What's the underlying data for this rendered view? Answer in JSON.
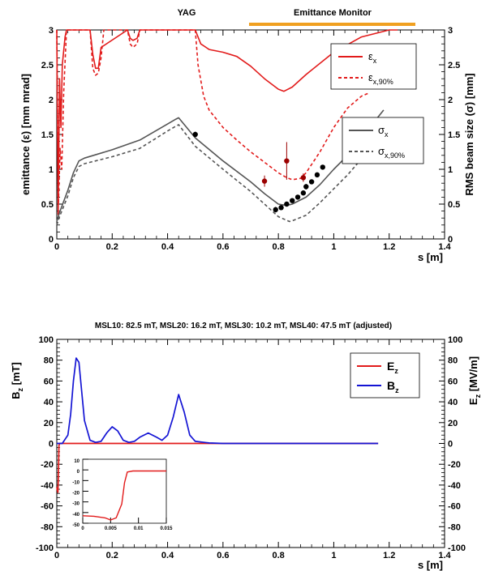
{
  "top_chart": {
    "region_labels": {
      "yag": "YAG",
      "emittance_monitor": "Emittance Monitor"
    },
    "colors": {
      "orange_bar": "#f0a020",
      "emit": "#e21b1b",
      "sigma": "#555555",
      "meas_red": "#9b0000",
      "meas_black": "#000000"
    },
    "legend_emit": {
      "line1": "ε",
      "sub1": "x",
      "line2": "ε",
      "sub2": "x,90%"
    },
    "legend_sigma": {
      "line1": "σ",
      "sub1": "x",
      "line2": "σ",
      "sub2": "x,90%"
    }
  },
  "bottom_chart": {
    "colors": {
      "ez": "#e21b1b",
      "bz": "#1414d4"
    },
    "legend": {
      "line1": "E",
      "sub1": "z",
      "line2": "B",
      "sub2": "z"
    }
  },
  "chart_data": [
    {
      "type": "line",
      "xlabel": "s [m]",
      "ylabel": "emittance (ε) [mm mrad]",
      "y2label": "RMS beam size (σ) [mm]",
      "xlim": [
        0,
        1.4
      ],
      "ylim": [
        0,
        3
      ],
      "y2lim": [
        0,
        3
      ],
      "x_ticks": [
        "0",
        "0.2",
        "0.4",
        "0.6",
        "0.8",
        "1",
        "1.2",
        "1.4"
      ],
      "y_ticks": [
        "0",
        "0.5",
        "1",
        "1.5",
        "2",
        "2.5",
        "3"
      ],
      "y2_ticks": [
        "0",
        "0.5",
        "1",
        "1.5",
        "2",
        "2.5",
        "3"
      ],
      "series": [
        {
          "name": "εx",
          "style": "solid",
          "x": [
            0.0,
            0.005,
            0.01,
            0.015,
            0.02,
            0.03,
            0.035,
            0.12,
            0.13,
            0.14,
            0.15,
            0.16,
            0.255,
            0.265,
            0.275,
            0.29,
            0.3,
            0.5,
            0.52,
            0.55,
            0.6,
            0.65,
            0.7,
            0.75,
            0.8,
            0.82,
            0.85,
            0.9,
            1.0,
            1.1,
            1.2,
            1.23
          ],
          "y": [
            3.0,
            0.35,
            2.3,
            1.6,
            2.5,
            2.9,
            3.0,
            3.0,
            2.65,
            2.45,
            2.45,
            2.75,
            3.0,
            2.88,
            2.85,
            2.88,
            3.0,
            3.0,
            2.8,
            2.72,
            2.68,
            2.62,
            2.48,
            2.3,
            2.15,
            2.12,
            2.18,
            2.36,
            2.68,
            2.9,
            3.0,
            3.0
          ]
        },
        {
          "name": "εx,90%",
          "style": "dashed",
          "x": [
            0.0,
            0.006,
            0.012,
            0.018,
            0.025,
            0.035,
            0.12,
            0.13,
            0.14,
            0.15,
            0.16,
            0.17,
            0.255,
            0.265,
            0.275,
            0.29,
            0.3,
            0.5,
            0.51,
            0.53,
            0.55,
            0.6,
            0.65,
            0.7,
            0.75,
            0.8,
            0.83,
            0.85,
            0.88,
            0.9,
            0.95,
            1.0,
            1.05,
            1.1,
            1.13
          ],
          "y": [
            3.0,
            0.5,
            1.3,
            1.0,
            2.1,
            3.0,
            3.0,
            2.45,
            2.35,
            2.38,
            2.6,
            3.0,
            3.0,
            2.8,
            2.75,
            2.8,
            3.0,
            3.0,
            2.5,
            2.05,
            1.85,
            1.6,
            1.42,
            1.25,
            1.1,
            0.95,
            0.88,
            0.85,
            0.87,
            0.95,
            1.25,
            1.6,
            1.88,
            2.05,
            2.1
          ]
        },
        {
          "name": "σx",
          "style": "solid",
          "x": [
            0.0,
            0.01,
            0.04,
            0.06,
            0.08,
            0.1,
            0.2,
            0.3,
            0.4,
            0.43,
            0.44,
            0.5,
            0.6,
            0.7,
            0.75,
            0.8,
            0.83,
            0.85,
            0.9,
            0.95,
            1.0,
            1.05,
            1.1,
            1.15,
            1.18
          ],
          "y": [
            0.25,
            0.38,
            0.7,
            0.95,
            1.12,
            1.16,
            1.28,
            1.42,
            1.65,
            1.72,
            1.74,
            1.45,
            1.12,
            0.82,
            0.65,
            0.5,
            0.48,
            0.5,
            0.6,
            0.78,
            1.0,
            1.2,
            1.45,
            1.7,
            1.85
          ]
        },
        {
          "name": "σx,90%",
          "style": "dashed",
          "x": [
            0.0,
            0.01,
            0.04,
            0.06,
            0.08,
            0.1,
            0.2,
            0.3,
            0.4,
            0.43,
            0.44,
            0.5,
            0.6,
            0.7,
            0.75,
            0.8,
            0.84,
            0.85,
            0.9,
            0.95,
            1.0,
            1.05,
            1.1,
            1.15,
            1.18
          ],
          "y": [
            0.2,
            0.32,
            0.62,
            0.88,
            1.04,
            1.08,
            1.18,
            1.3,
            1.55,
            1.62,
            1.64,
            1.33,
            1.0,
            0.68,
            0.5,
            0.32,
            0.25,
            0.26,
            0.34,
            0.52,
            0.72,
            0.92,
            1.15,
            1.38,
            1.52
          ]
        }
      ],
      "measurements_emittance": {
        "x": [
          0.75,
          0.83,
          0.89
        ],
        "y": [
          0.83,
          1.12,
          0.88
        ],
        "err": [
          0.08,
          0.27,
          0.06
        ]
      },
      "measurements_sigma": {
        "x": [
          0.5,
          0.79,
          0.81,
          0.83,
          0.85,
          0.87,
          0.89,
          0.9,
          0.92,
          0.94,
          0.96
        ],
        "y": [
          1.5,
          0.42,
          0.45,
          0.5,
          0.55,
          0.6,
          0.66,
          0.75,
          0.82,
          0.92,
          1.03
        ],
        "err": [
          0.04,
          0.04,
          0.03,
          0.03,
          0.03,
          0.03,
          0.03,
          0.04,
          0.03,
          0.03,
          0.03
        ]
      }
    },
    {
      "type": "line",
      "title": "MSL10: 82.5 mT, MSL20: 16.2 mT, MSL30: 10.2 mT, MSL40: 47.5 mT (adjusted)",
      "xlabel": "s [m]",
      "ylabel": "Bz [mT]",
      "y2label": "Ez [MV/m]",
      "xlim": [
        0,
        1.4
      ],
      "ylim": [
        -100,
        100
      ],
      "y2lim": [
        -100,
        100
      ],
      "x_ticks": [
        "0",
        "0.2",
        "0.4",
        "0.6",
        "0.8",
        "1",
        "1.2",
        "1.4"
      ],
      "y_ticks": [
        "-100",
        "-80",
        "-60",
        "-40",
        "-20",
        "0",
        "20",
        "40",
        "60",
        "80",
        "100"
      ],
      "y2_ticks": [
        "-100",
        "-80",
        "-60",
        "-40",
        "-20",
        "0",
        "20",
        "40",
        "60",
        "80",
        "100"
      ],
      "series": [
        {
          "name": "Ez",
          "x": [
            0.0,
            0.002,
            0.004,
            0.006,
            0.008,
            0.01,
            1.16
          ],
          "y": [
            -42,
            -45,
            -47,
            -30,
            -2,
            0,
            0
          ]
        },
        {
          "name": "Bz",
          "x": [
            0.0,
            0.02,
            0.04,
            0.05,
            0.06,
            0.07,
            0.08,
            0.09,
            0.1,
            0.12,
            0.14,
            0.16,
            0.18,
            0.2,
            0.22,
            0.24,
            0.26,
            0.28,
            0.3,
            0.33,
            0.36,
            0.38,
            0.4,
            0.42,
            0.44,
            0.46,
            0.48,
            0.5,
            0.55,
            0.6,
            1.16
          ],
          "y": [
            0,
            0,
            8,
            28,
            60,
            82,
            78,
            50,
            22,
            3,
            1,
            2,
            10,
            16,
            12,
            3,
            1,
            2,
            6,
            10,
            6,
            3,
            8,
            25,
            47,
            30,
            8,
            2,
            0.5,
            0,
            0
          ]
        }
      ],
      "inset": {
        "xlim": [
          0,
          0.015
        ],
        "ylim": [
          -50,
          10
        ],
        "x_ticks": [
          "0",
          "0.005",
          "0.01",
          "0.015"
        ],
        "y_ticks": [
          "-50",
          "-40",
          "-30",
          "-20",
          "-10",
          "0",
          "10"
        ],
        "series": [
          {
            "name": "Ez",
            "x": [
              0.0,
              0.002,
              0.004,
              0.005,
              0.006,
              0.007,
              0.0075,
              0.008,
              0.009,
              0.015
            ],
            "y": [
              -43,
              -43.5,
              -45,
              -47,
              -45,
              -32,
              -12,
              -2,
              -1,
              -1
            ]
          }
        ]
      }
    }
  ]
}
